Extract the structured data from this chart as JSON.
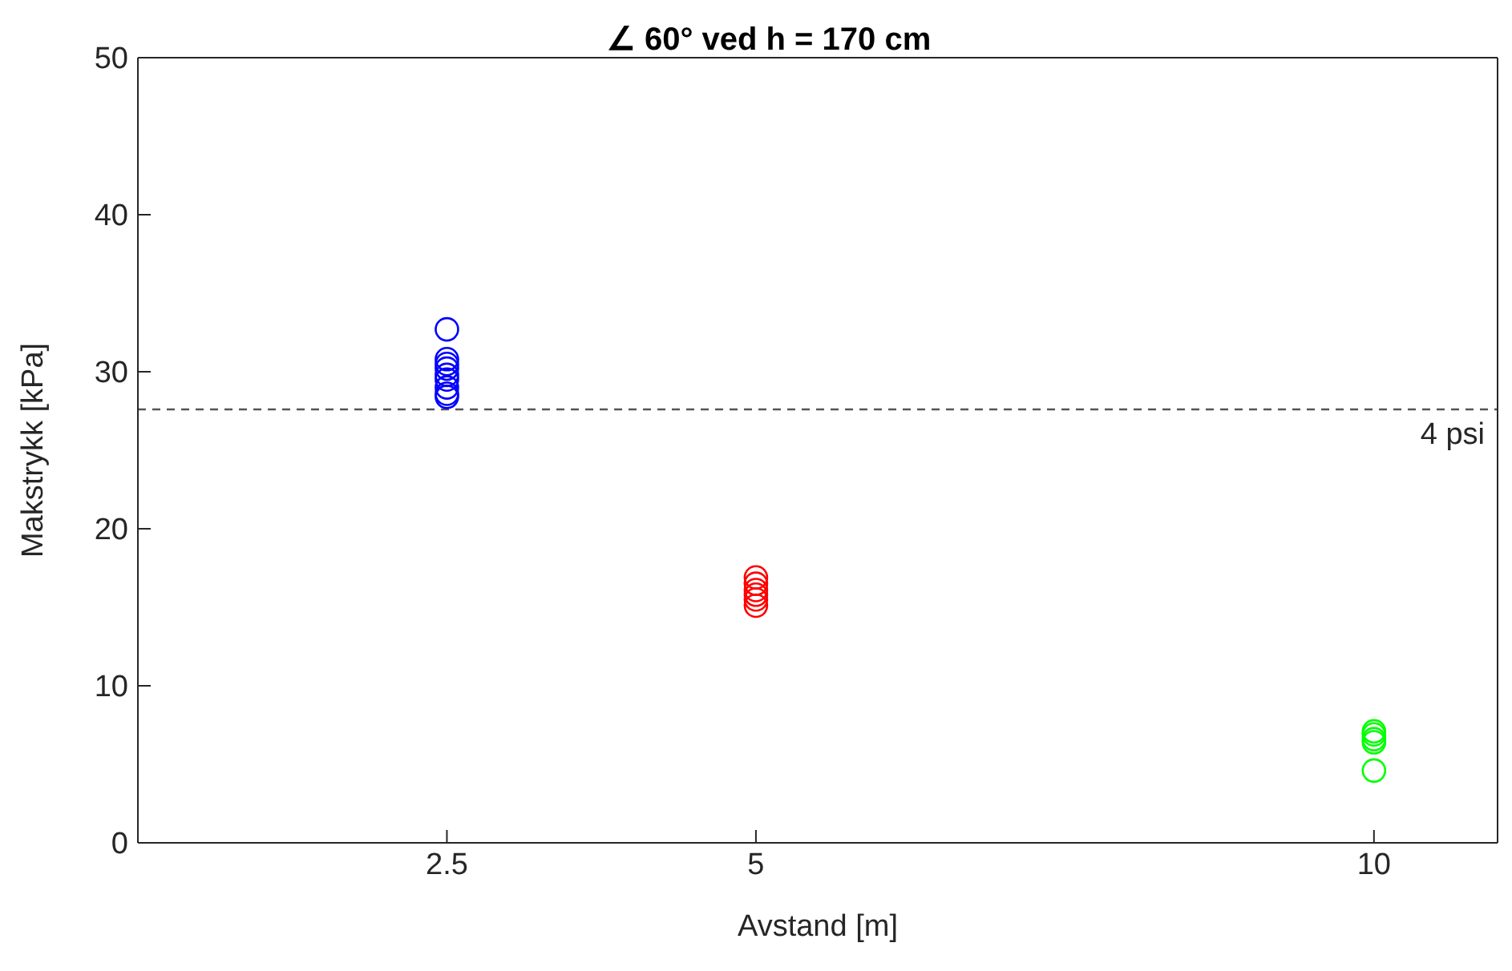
{
  "chart_data": {
    "type": "scatter",
    "title": "∠ 60° ved h = 170 cm",
    "xlabel": "Avstand [m]",
    "ylabel": "Makstrykk [kPa]",
    "xlim": [
      0,
      11
    ],
    "xticks": [
      2.5,
      5,
      10
    ],
    "ylim": [
      0,
      50
    ],
    "yticks": [
      0,
      10,
      20,
      30,
      40,
      50
    ],
    "marker": "circle",
    "grid": false,
    "legend": false,
    "series": [
      {
        "color": "#0000ff",
        "x": [
          2.5,
          2.5,
          2.5,
          2.5,
          2.5,
          2.5,
          2.5,
          2.5,
          2.5
        ],
        "values": [
          32.7,
          30.8,
          30.5,
          30.2,
          29.8,
          29.5,
          29.0,
          28.6,
          28.4
        ]
      },
      {
        "color": "#ff0000",
        "x": [
          5,
          5,
          5,
          5,
          5,
          5
        ],
        "values": [
          16.9,
          16.5,
          16.1,
          15.8,
          15.5,
          15.1
        ]
      },
      {
        "color": "#00ff00",
        "x": [
          10,
          10,
          10,
          10,
          10
        ],
        "values": [
          7.1,
          6.9,
          6.6,
          6.4,
          4.6
        ]
      }
    ],
    "ref_lines": [
      {
        "axis": "y",
        "value": 27.6,
        "label": "4 psi",
        "color": "#555555",
        "line_style": "dashed"
      }
    ]
  }
}
